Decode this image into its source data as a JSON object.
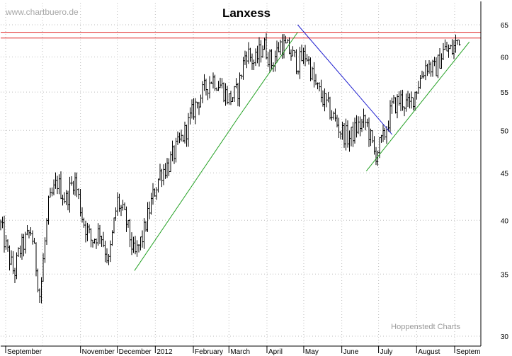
{
  "watermark": "www.chartbuero.de",
  "source": "Hoppenstedt Charts",
  "chart_data": {
    "type": "bar",
    "style": "ohlc",
    "title": "Lanxess",
    "xlabel": "",
    "ylabel": "",
    "y_scale": "log",
    "ylim": [
      30,
      67
    ],
    "y_ticks": [
      30,
      35,
      40,
      45,
      50,
      55,
      60,
      65
    ],
    "x_ticks": [
      "September",
      "November",
      "December",
      "2012",
      "February",
      "March",
      "April",
      "May",
      "June",
      "July",
      "August",
      "Septem"
    ],
    "grid": true,
    "resistance_lines": [
      63.8,
      62.9
    ],
    "colors": {
      "price": "#000000",
      "resistance": "#e02020",
      "uptrend": "#22a022",
      "downtrend": "#2020d0"
    },
    "x": [
      "2011-08-25",
      "2011-09-01",
      "2011-09-08",
      "2011-09-12",
      "2011-09-22",
      "2011-09-29",
      "2011-10-06",
      "2011-10-13",
      "2011-10-20",
      "2011-10-27",
      "2011-11-03",
      "2011-11-10",
      "2011-11-17",
      "2011-11-24",
      "2011-12-01",
      "2011-12-08",
      "2011-12-15",
      "2011-12-22",
      "2011-12-29",
      "2012-01-05",
      "2012-01-12",
      "2012-01-19",
      "2012-01-26",
      "2012-02-02",
      "2012-02-09",
      "2012-02-16",
      "2012-02-23",
      "2012-03-01",
      "2012-03-08",
      "2012-03-15",
      "2012-03-22",
      "2012-03-29",
      "2012-04-05",
      "2012-04-12",
      "2012-04-19",
      "2012-04-26",
      "2012-05-03",
      "2012-05-10",
      "2012-05-17",
      "2012-05-24",
      "2012-05-31",
      "2012-06-07",
      "2012-06-14",
      "2012-06-21",
      "2012-06-28",
      "2012-07-05",
      "2012-07-12",
      "2012-07-19",
      "2012-07-26",
      "2012-08-02",
      "2012-08-09",
      "2012-08-16",
      "2012-08-23",
      "2012-08-30",
      "2012-09-06"
    ],
    "close": [
      41.0,
      37.5,
      35.0,
      37.0,
      39.0,
      33.0,
      41.5,
      44.0,
      42.0,
      44.5,
      40.0,
      38.0,
      39.0,
      36.0,
      42.0,
      40.0,
      36.5,
      38.5,
      42.0,
      45.0,
      46.0,
      48.0,
      50.0,
      53.0,
      55.0,
      57.0,
      56.0,
      54.0,
      55.0,
      61.0,
      59.0,
      62.0,
      59.0,
      62.0,
      61.0,
      59.0,
      60.5,
      56.0,
      54.0,
      52.0,
      50.0,
      49.0,
      50.5,
      51.0,
      47.0,
      49.0,
      53.0,
      54.0,
      53.0,
      56.0,
      59.0,
      58.0,
      61.0,
      61.0,
      63.5
    ]
  },
  "trendlines": [
    {
      "name": "uptrend-1",
      "from": [
        "2011-12-15",
        35.3
      ],
      "to": [
        "2012-03-08",
        51.5
      ]
    },
    {
      "name": "uptrend-2",
      "from": [
        "2012-03-08",
        51.5
      ],
      "to": [
        "2012-04-26",
        63.8
      ]
    },
    {
      "name": "downtrend",
      "from": [
        "2012-04-26",
        65.0
      ],
      "to": [
        "2012-07-12",
        49.5
      ]
    },
    {
      "name": "uptrend-3",
      "from": [
        "2012-06-21",
        45.2
      ],
      "to": [
        "2012-09-13",
        62.3
      ]
    }
  ]
}
